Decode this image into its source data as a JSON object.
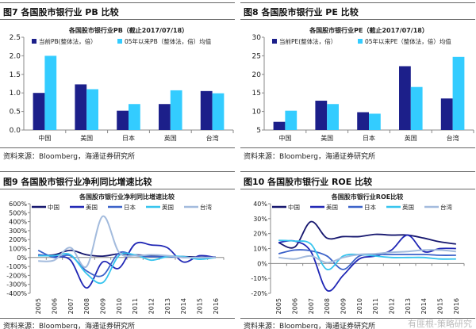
{
  "colors": {
    "current": "#1c1f8a",
    "average": "#33ccff",
    "china": "#15166e",
    "us": "#2027b5",
    "japan": "#3b62c9",
    "uk": "#36c4ee",
    "taiwan": "#a3bbdd"
  },
  "source_text": "资料来源：Bloomberg，海通证券研究所",
  "watermark": "有匪根-策略研究",
  "chart_data": [
    {
      "figure": "图7  各国股市银行业 PB 比较",
      "type": "bar",
      "title": "各国股市银行业PB（截止2017/07/18）",
      "categories": [
        "中国",
        "美国",
        "日本",
        "英国",
        "台湾"
      ],
      "ylim": [
        0,
        2.5
      ],
      "yticks": [
        "0.0",
        "0.5",
        "1.0",
        "1.5",
        "2.0",
        "2.5"
      ],
      "series": [
        {
          "name": "当前PB(整体法，倍）",
          "values": [
            1.0,
            1.23,
            0.52,
            0.7,
            1.05
          ]
        },
        {
          "name": "05年以来PB（整体法，倍）均值",
          "values": [
            2.0,
            1.1,
            0.7,
            1.07,
            0.99
          ]
        }
      ]
    },
    {
      "figure": "图8  各国股市银行业 PE 比较",
      "type": "bar",
      "title": "各国股市银行业PE（截止2017/07/18）",
      "categories": [
        "中国",
        "美国",
        "日本",
        "英国",
        "台湾"
      ],
      "ylim": [
        5,
        30
      ],
      "yticks": [
        "5",
        "10",
        "15",
        "20",
        "25",
        "30"
      ],
      "series": [
        {
          "name": "当前PE(整体法，倍）",
          "values": [
            7.2,
            12.9,
            9.8,
            22.2,
            13.5
          ]
        },
        {
          "name": "05年以来PE（整体法，倍）均值",
          "values": [
            10.2,
            12.0,
            9.4,
            16.6,
            24.7
          ]
        }
      ]
    },
    {
      "figure": "图9  各国股市银行业净利同比增速比较",
      "type": "line",
      "title": "各国股市银行业净利同比增速比较",
      "categories": [
        "2005",
        "2006",
        "2007",
        "2008",
        "2009",
        "2010",
        "2011",
        "2012",
        "2013",
        "2014",
        "2015",
        "2016"
      ],
      "ylim": [
        -400,
        600
      ],
      "yticks": [
        "-400%",
        "-300%",
        "-200%",
        "-100%",
        "0%",
        "100%",
        "200%",
        "300%",
        "400%",
        "500%",
        "600%"
      ],
      "series": [
        {
          "name": "中国",
          "values": [
            20,
            30,
            80,
            30,
            15,
            40,
            30,
            20,
            15,
            10,
            5,
            5
          ]
        },
        {
          "name": "美国",
          "values": [
            30,
            10,
            -30,
            -340,
            -50,
            -120,
            150,
            140,
            110,
            -50,
            20,
            0
          ]
        },
        {
          "name": "日本",
          "values": [
            80,
            0,
            20,
            -150,
            -200,
            50,
            20,
            10,
            10,
            0,
            0,
            0
          ]
        },
        {
          "name": "英国",
          "values": [
            20,
            20,
            30,
            -180,
            -280,
            20,
            30,
            -30,
            10,
            10,
            -20,
            0
          ]
        },
        {
          "name": "台湾",
          "values": [
            -40,
            -30,
            110,
            -100,
            460,
            60,
            20,
            30,
            20,
            0,
            0,
            0
          ]
        }
      ]
    },
    {
      "figure": "图10 各国股市银行业 ROE 比较",
      "type": "line",
      "title": "各国股市银行业ROE比较",
      "categories": [
        "2005",
        "2006",
        "2007",
        "2008",
        "2009",
        "2010",
        "2011",
        "2012",
        "2013",
        "2014",
        "2015",
        "2016"
      ],
      "ylim": [
        -20,
        40
      ],
      "yticks": [
        "-20%",
        "-10%",
        "0%",
        "10%",
        "20%",
        "30%",
        "40%"
      ],
      "series": [
        {
          "name": "中国",
          "values": [
            14,
            11,
            28,
            17,
            18,
            18,
            19.5,
            19,
            19,
            17,
            14.5,
            13
          ]
        },
        {
          "name": "美国",
          "values": [
            14,
            15,
            8,
            -18,
            -8,
            3,
            5,
            9,
            19,
            8,
            10,
            10
          ]
        },
        {
          "name": "日本",
          "values": [
            6.5,
            9,
            8.5,
            5,
            -4,
            5,
            6,
            6,
            6,
            6,
            5.5,
            5.5
          ]
        },
        {
          "name": "英国",
          "values": [
            15.5,
            15,
            13,
            -4,
            5,
            6,
            5,
            4,
            4,
            4,
            3,
            3
          ]
        },
        {
          "name": "台湾",
          "values": [
            4,
            3,
            5,
            0.5,
            4,
            6,
            6.5,
            7.5,
            8,
            9,
            9,
            8
          ]
        }
      ]
    }
  ]
}
